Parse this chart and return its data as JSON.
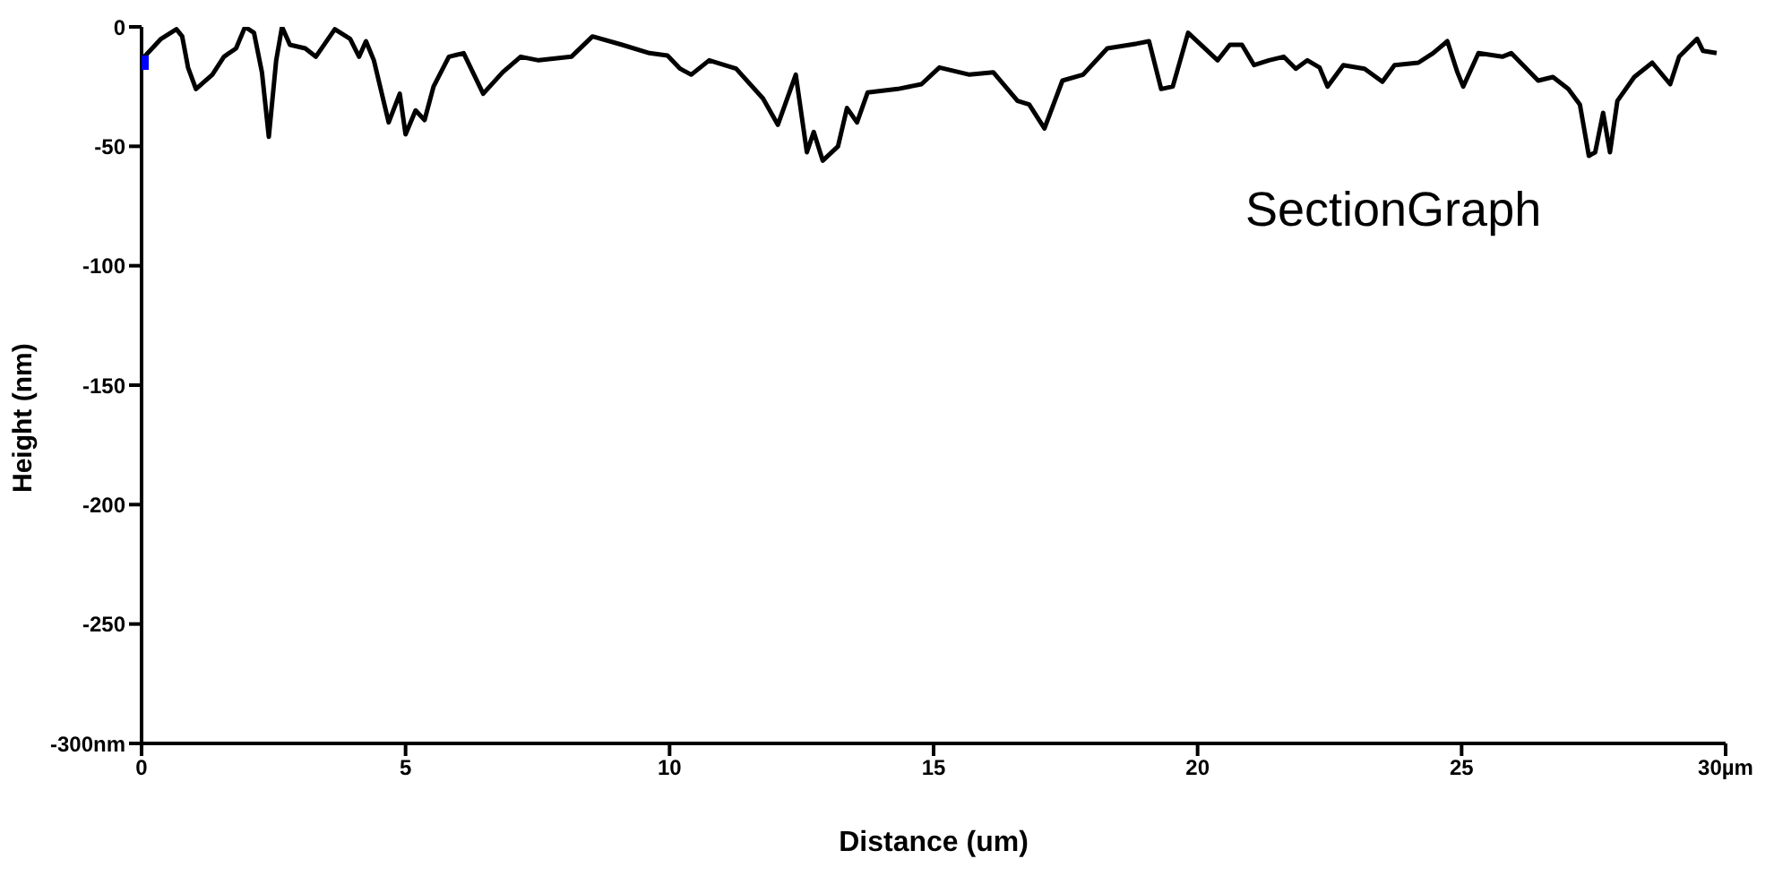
{
  "chart_data": {
    "type": "line",
    "title": "SectionGraph",
    "xlabel": "Distance (um)",
    "ylabel": "Height (nm)",
    "xlim": [
      0,
      30
    ],
    "xticks": [
      0,
      5,
      10,
      15,
      20,
      25,
      {
        "value": 30,
        "label": "30µm"
      }
    ],
    "ylim": [
      -300,
      0
    ],
    "yticks": [
      {
        "value": -300,
        "label": "-300nm"
      },
      -250,
      -200,
      -150,
      -100,
      -50,
      0
    ],
    "grid": false,
    "line_style": "solid",
    "series": [
      {
        "color": "#000000",
        "x": [
          0.03,
          0.37,
          0.66,
          0.77,
          0.88,
          1.03,
          1.34,
          1.56,
          1.79,
          1.96,
          2.13,
          2.28,
          2.41,
          2.55,
          2.66,
          2.81,
          3.1,
          3.3,
          3.66,
          3.95,
          4.12,
          4.25,
          4.4,
          4.68,
          4.89,
          5.0,
          5.19,
          5.36,
          5.53,
          5.82,
          6.1,
          6.47,
          6.84,
          7.18,
          7.52,
          8.14,
          8.54,
          9.1,
          9.62,
          9.96,
          10.2,
          10.41,
          10.75,
          11.26,
          11.77,
          12.05,
          12.39,
          12.6,
          12.73,
          12.9,
          13.19,
          13.36,
          13.55,
          13.75,
          14.32,
          14.77,
          15.11,
          15.68,
          16.13,
          16.59,
          16.81,
          17.1,
          17.44,
          17.83,
          18.29,
          18.85,
          19.08,
          19.31,
          19.53,
          19.82,
          20.38,
          20.61,
          20.84,
          21.07,
          21.35,
          21.63,
          21.86,
          22.08,
          22.31,
          22.46,
          22.76,
          23.16,
          23.5,
          23.73,
          24.18,
          24.46,
          24.73,
          24.92,
          25.03,
          25.32,
          25.77,
          25.94,
          26.45,
          26.73,
          27.02,
          27.24,
          27.41,
          27.53,
          27.68,
          27.81,
          27.95,
          28.27,
          28.61,
          28.95,
          29.12,
          29.46,
          29.57,
          29.83
        ],
        "values": [
          -13,
          -5,
          -1,
          -4,
          -17,
          -26,
          -20,
          -12.5,
          -9,
          0,
          -2.5,
          -19,
          -46,
          -14,
          0,
          -7.5,
          -9,
          -12.5,
          -1,
          -5,
          -12.5,
          -6,
          -14,
          -40,
          -28,
          -45,
          -35,
          -39,
          -25,
          -12.5,
          -11,
          -28,
          -19,
          -12.5,
          -14,
          -12.5,
          -4,
          -7.5,
          -11,
          -12,
          -17.5,
          -20,
          -14,
          -17.5,
          -30,
          -41,
          -20,
          -52.5,
          -44,
          -56,
          -50,
          -34,
          -40,
          -27.5,
          -26,
          -24,
          -17,
          -20,
          -19,
          -31,
          -32.5,
          -42.5,
          -22.5,
          -20,
          -9,
          -7,
          -6,
          -26,
          -25,
          -2.5,
          -14,
          -7.5,
          -7.5,
          -16,
          -14,
          -12.5,
          -17.5,
          -14,
          -17,
          -25,
          -16,
          -17.5,
          -23,
          -16,
          -15,
          -11,
          -6,
          -19,
          -25,
          -11,
          -12.5,
          -11,
          -22.5,
          -21,
          -26,
          -32.5,
          -54,
          -52.5,
          -36,
          -52.5,
          -31,
          -21,
          -15,
          -24,
          -12.5,
          -5,
          -10,
          -11
        ]
      },
      {
        "type": "scatter",
        "color": "#0000ff",
        "marker": "square",
        "x": [
          0
        ],
        "values": [
          -15
        ]
      }
    ]
  }
}
